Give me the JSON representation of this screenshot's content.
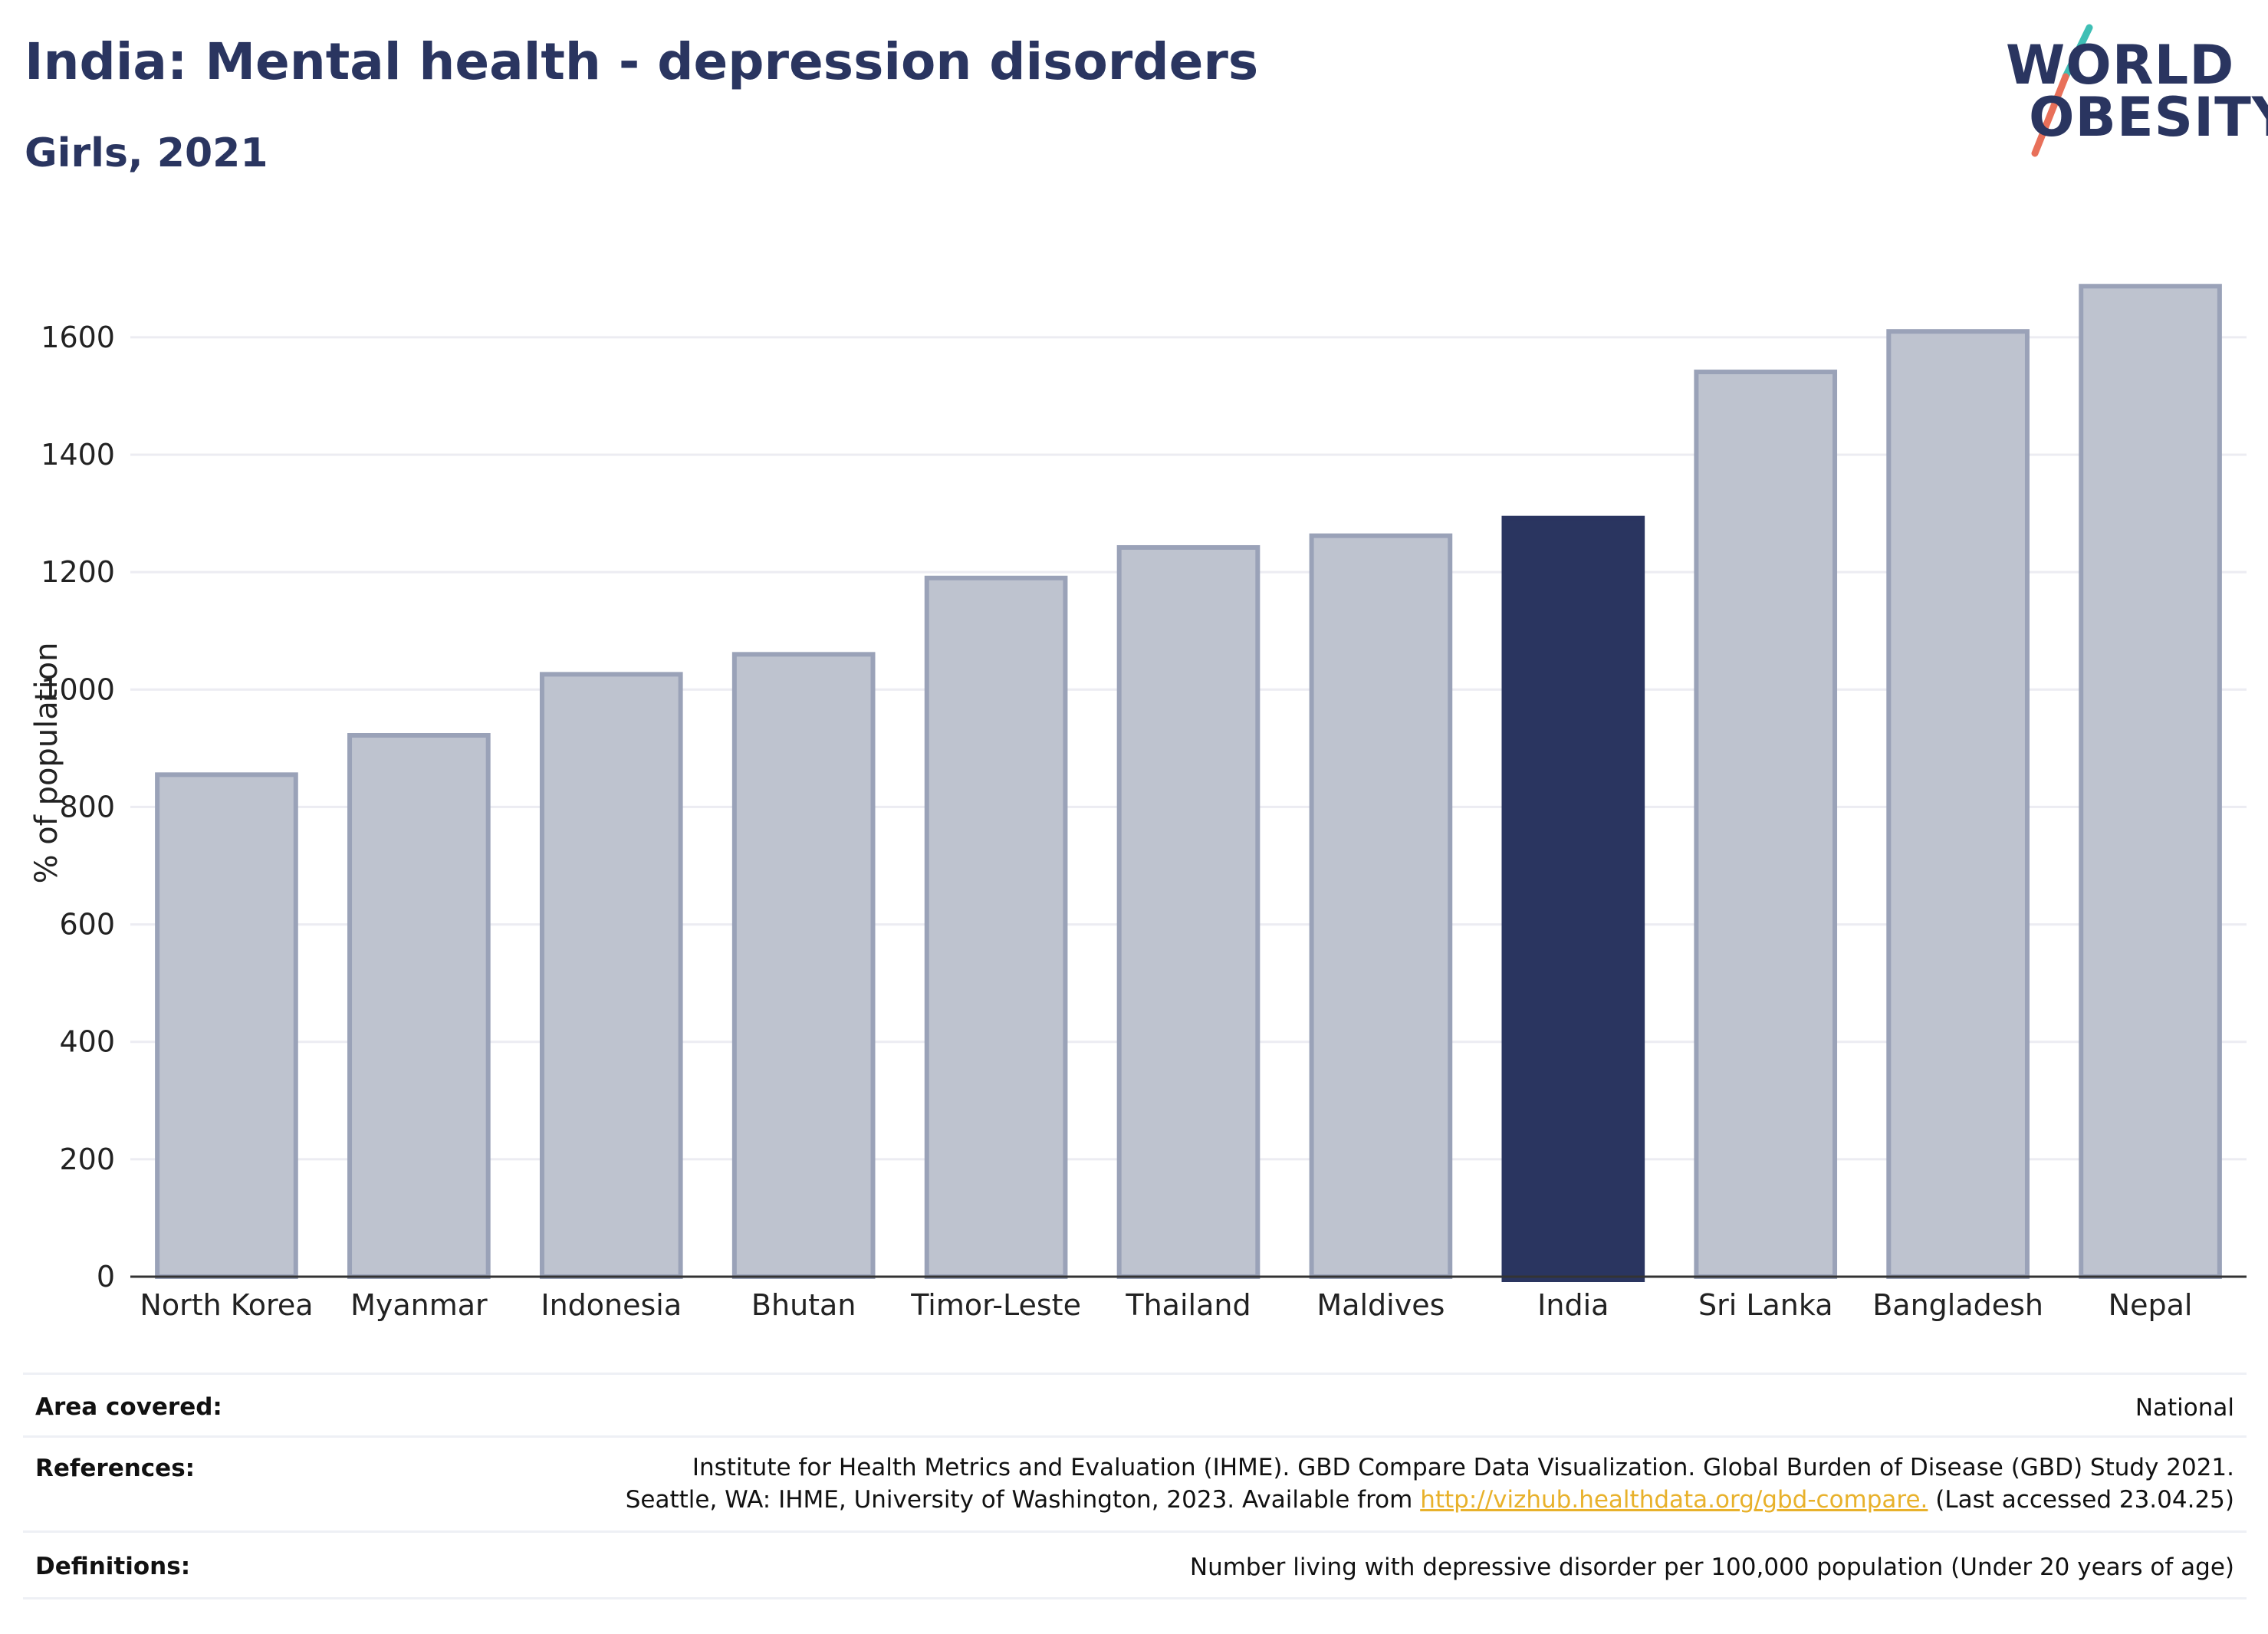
{
  "header": {
    "title": "India: Mental health - depression disorders",
    "subtitle": "Girls, 2021"
  },
  "logo": {
    "line1": "WORLD",
    "line2": "OBESITY",
    "slash_top_color": "#3fbfb5",
    "slash_bottom_color": "#e8705a"
  },
  "colors": {
    "highlight": "#2a3560",
    "bar": "#bec3cf",
    "bar_edge": "#9aa2b8",
    "grid": "#ececf2",
    "link": "#e8b12b"
  },
  "chart_data": {
    "type": "bar",
    "title": "India: Mental health - depression disorders",
    "subtitle": "Girls, 2021",
    "ylabel": "% of population",
    "xlabel": "",
    "categories": [
      "North Korea",
      "Myanmar",
      "Indonesia",
      "Bhutan",
      "Timor-Leste",
      "Thailand",
      "Maldives",
      "India",
      "Sri Lanka",
      "Bangladesh",
      "Nepal"
    ],
    "values": [
      855,
      922,
      1026,
      1060,
      1190,
      1242,
      1262,
      1292,
      1541,
      1610,
      1687
    ],
    "highlight": "India",
    "ylim": [
      0,
      1750
    ],
    "yticks": [
      0,
      200,
      400,
      600,
      800,
      1000,
      1200,
      1400,
      1600
    ],
    "grid": true,
    "legend": "none"
  },
  "meta": {
    "area_label": "Area covered:",
    "area_value": "National",
    "references_label": "References:",
    "references_line1": "Institute for Health Metrics and Evaluation (IHME). GBD Compare Data Visualization. Global Burden of Disease (GBD) Study 2021.",
    "references_line2_pre": "Seattle, WA: IHME, University of Washington, 2023. Available from ",
    "references_link": "http://vizhub.healthdata.org/gbd-compare.",
    "references_line2_post": " (Last accessed 23.04.25)",
    "definitions_label": "Definitions:",
    "definitions_value": "Number living with depressive disorder per 100,000 population (Under 20 years of age)"
  }
}
